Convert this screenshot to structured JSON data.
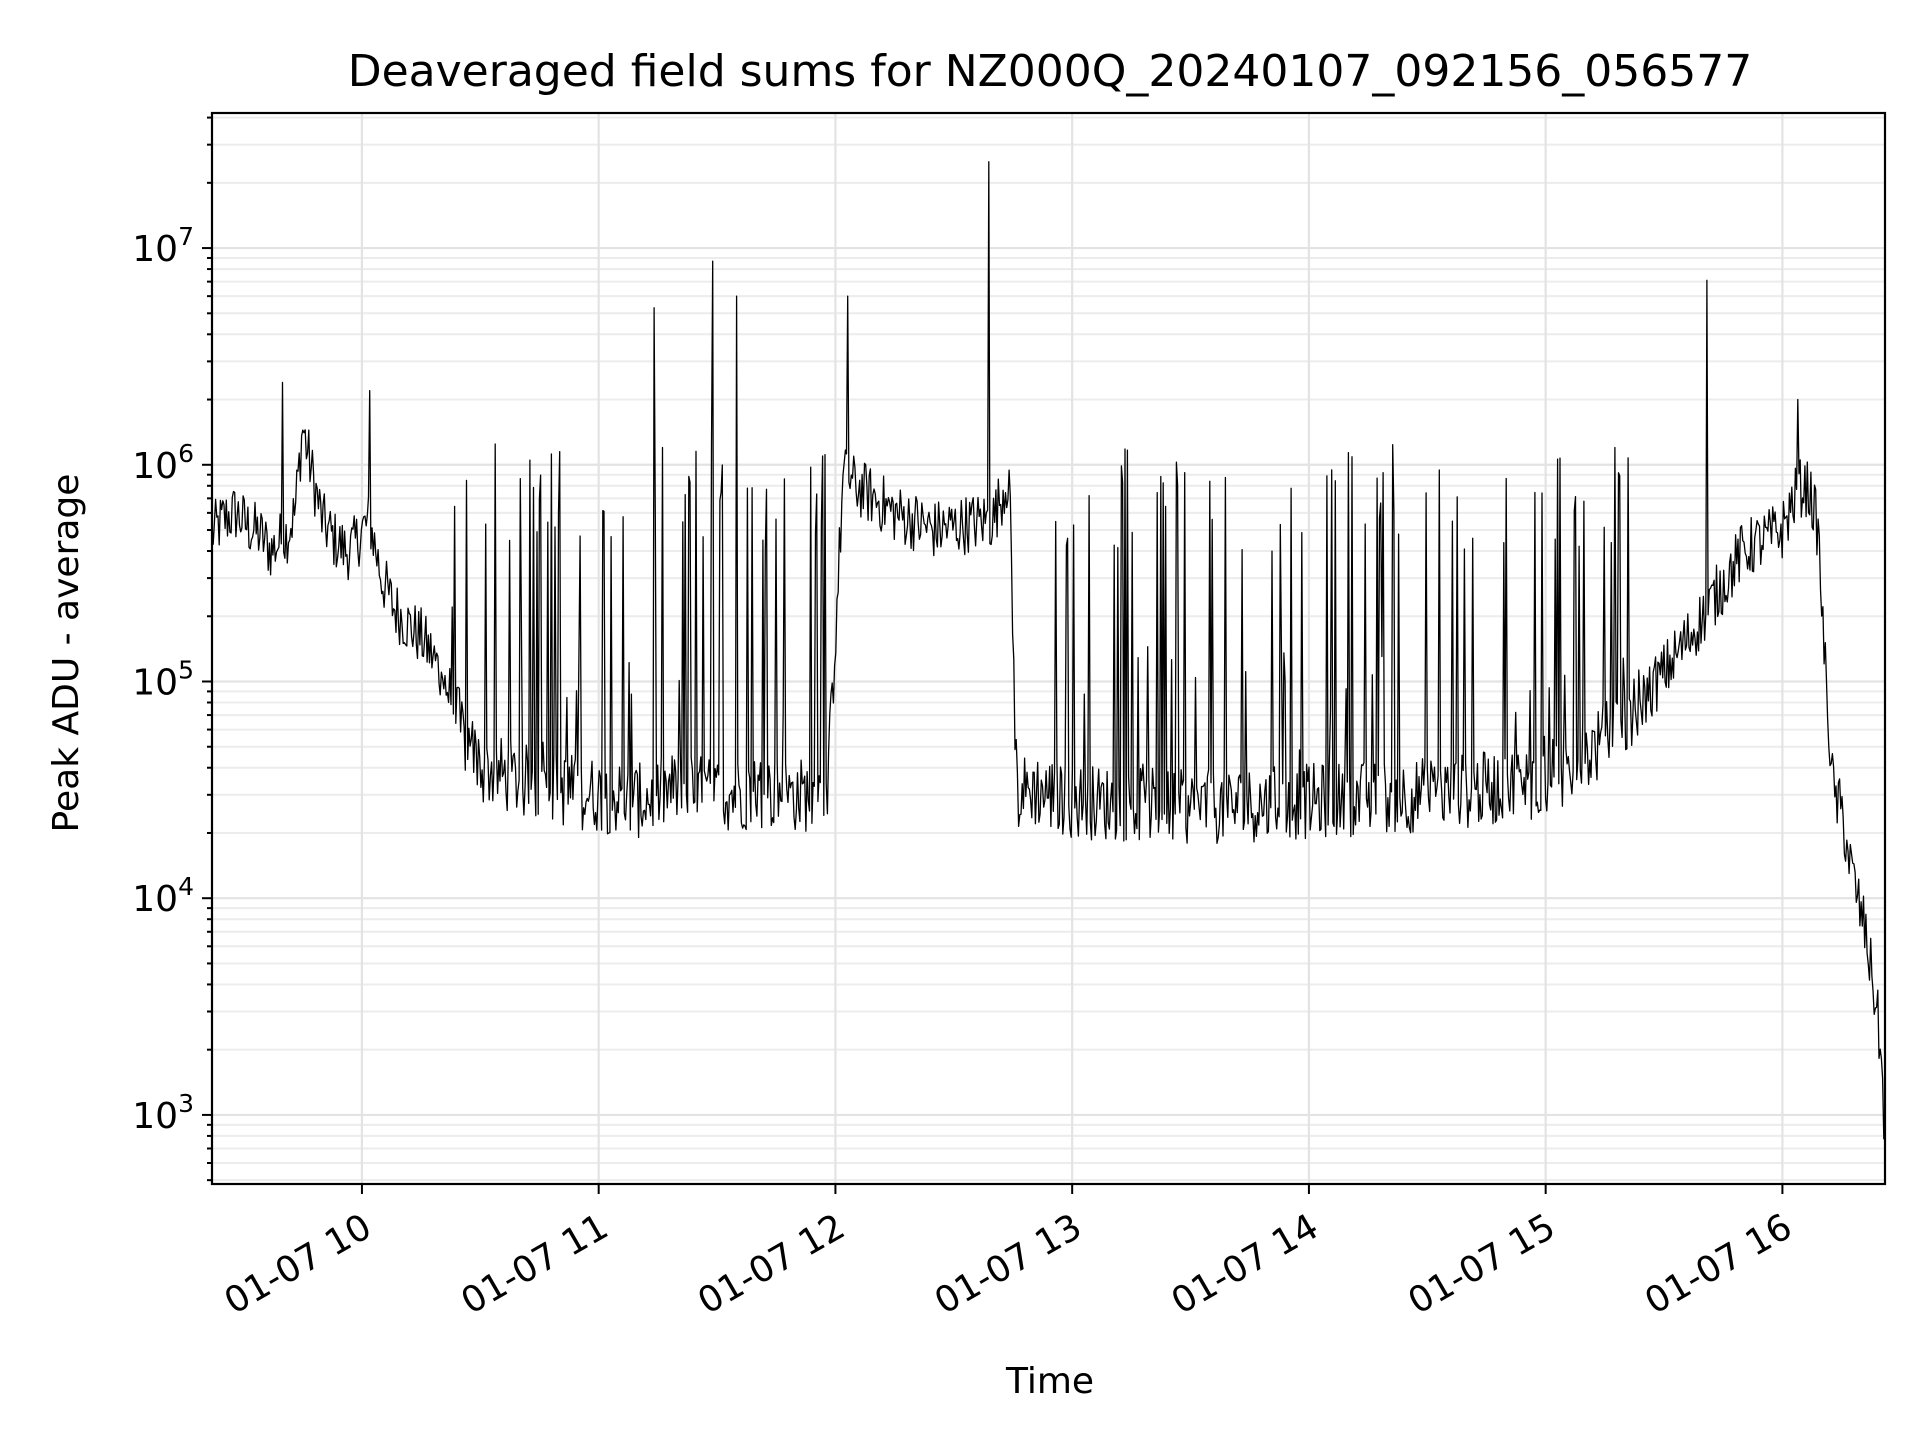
{
  "chart_data": {
    "type": "line",
    "title": "Deaveraged field sums for NZ000Q_20240107_092156_056577",
    "xlabel": "Time",
    "ylabel": "Peak ADU - average",
    "yscale": "log",
    "xlim": [
      "2024-01-07 09:22",
      "2024-01-07 16:26"
    ],
    "ylim": [
      480,
      42000000
    ],
    "grid": "major and minor",
    "x_tick_labels": [
      "01-07 10",
      "01-07 11",
      "01-07 12",
      "01-07 13",
      "01-07 14",
      "01-07 15",
      "01-07 16"
    ],
    "x_tick_values": [
      "2024-01-07 10:00",
      "2024-01-07 11:00",
      "2024-01-07 12:00",
      "2024-01-07 13:00",
      "2024-01-07 14:00",
      "2024-01-07 15:00",
      "2024-01-07 16:00"
    ],
    "y_tick_labels": [
      {
        "base": "10",
        "exp": "3",
        "value": 1000
      },
      {
        "base": "10",
        "exp": "4",
        "value": 10000
      },
      {
        "base": "10",
        "exp": "5",
        "value": 100000
      },
      {
        "base": "10",
        "exp": "6",
        "value": 1000000
      },
      {
        "base": "10",
        "exp": "7",
        "value": 10000000
      }
    ],
    "series": [
      {
        "color": "#000000",
        "x": [
          "2024-01-07 09:22",
          "2024-01-07 09:25",
          "2024-01-07 09:28",
          "2024-01-07 09:31",
          "2024-01-07 09:34",
          "2024-01-07 09:37",
          "2024-01-07 09:39",
          "2024-01-07 09:41",
          "2024-01-07 09:43",
          "2024-01-07 09:45",
          "2024-01-07 09:46",
          "2024-01-07 09:48",
          "2024-01-07 09:50",
          "2024-01-07 09:53",
          "2024-01-07 09:56",
          "2024-01-07 09:58",
          "2024-01-07 10:00",
          "2024-01-07 10:02",
          "2024-01-07 10:05",
          "2024-01-07 10:08",
          "2024-01-07 10:12",
          "2024-01-07 10:15",
          "2024-01-07 10:18",
          "2024-01-07 10:22",
          "2024-01-07 10:25",
          "2024-01-07 10:30",
          "2024-01-07 10:40",
          "2024-01-07 10:50",
          "2024-01-07 11:00",
          "2024-01-07 11:10",
          "2024-01-07 11:20",
          "2024-01-07 11:30",
          "2024-01-07 11:40",
          "2024-01-07 11:50",
          "2024-01-07 11:58",
          "2024-01-07 12:02",
          "2024-01-07 12:05",
          "2024-01-07 12:10",
          "2024-01-07 12:15",
          "2024-01-07 12:20",
          "2024-01-07 12:25",
          "2024-01-07 12:30",
          "2024-01-07 12:35",
          "2024-01-07 12:40",
          "2024-01-07 12:44",
          "2024-01-07 12:46",
          "2024-01-07 12:50",
          "2024-01-07 13:00",
          "2024-01-07 13:15",
          "2024-01-07 13:30",
          "2024-01-07 13:45",
          "2024-01-07 14:00",
          "2024-01-07 14:15",
          "2024-01-07 14:30",
          "2024-01-07 14:45",
          "2024-01-07 15:00",
          "2024-01-07 15:10",
          "2024-01-07 15:20",
          "2024-01-07 15:30",
          "2024-01-07 15:40",
          "2024-01-07 15:50",
          "2024-01-07 16:00",
          "2024-01-07 16:03",
          "2024-01-07 16:05",
          "2024-01-07 16:07",
          "2024-01-07 16:09",
          "2024-01-07 16:11",
          "2024-01-07 16:13",
          "2024-01-07 16:15",
          "2024-01-07 16:17",
          "2024-01-07 16:19",
          "2024-01-07 16:21",
          "2024-01-07 16:23",
          "2024-01-07 16:24",
          "2024-01-07 16:25",
          "2024-01-07 16:26"
        ],
        "y": [
          480000,
          560000,
          600000,
          520000,
          480000,
          400000,
          440000,
          480000,
          600000,
          1500000,
          1200000,
          800000,
          550000,
          450000,
          400000,
          420000,
          500000,
          550000,
          300000,
          220000,
          180000,
          160000,
          130000,
          90000,
          60000,
          40000,
          35000,
          32000,
          30000,
          28000,
          32000,
          30000,
          31000,
          30000,
          30000,
          900000,
          800000,
          700000,
          600000,
          550000,
          500000,
          520000,
          540000,
          560000,
          900000,
          30000,
          32000,
          28000,
          27000,
          26000,
          27000,
          28000,
          29000,
          30000,
          32000,
          35000,
          45000,
          65000,
          110000,
          200000,
          400000,
          500000,
          700000,
          800000,
          750000,
          500000,
          100000,
          30000,
          25000,
          15000,
          10000,
          7000,
          4000,
          3000,
          1800,
          800
        ]
      }
    ],
    "annotations_spikes": {
      "x": [
        "2024-01-07 09:40",
        "2024-01-07 10:02",
        "2024-01-07 10:50",
        "2024-01-07 11:14",
        "2024-01-07 11:29",
        "2024-01-07 11:35",
        "2024-01-07 12:03",
        "2024-01-07 12:39",
        "2024-01-07 15:41",
        "2024-01-07 16:04"
      ],
      "y": [
        2400000,
        2200000,
        1150000,
        5300000,
        8700000,
        6000000,
        6000000,
        25000000,
        7100000,
        2000000
      ]
    }
  }
}
